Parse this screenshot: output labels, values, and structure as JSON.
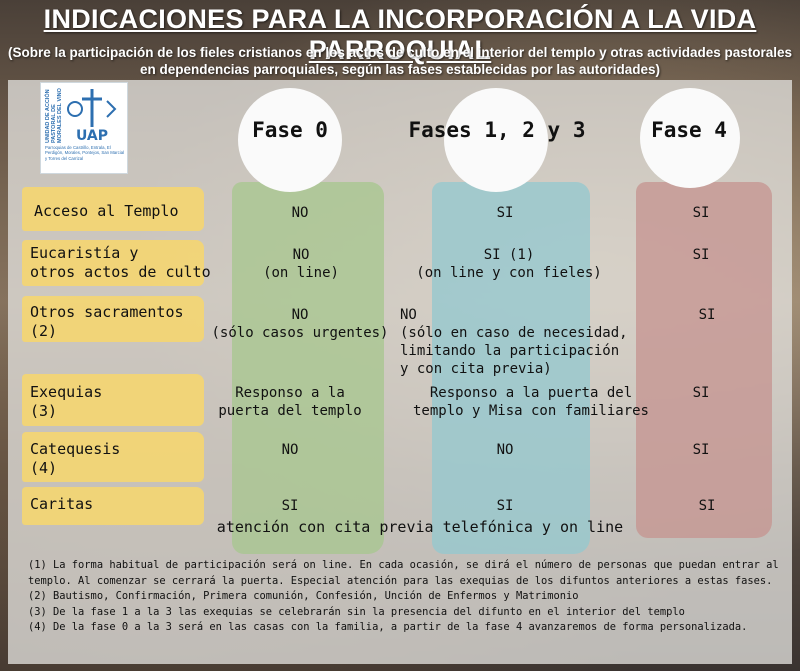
{
  "title": "INDICACIONES PARA LA INCORPORACIÓN A LA VIDA PARROQUIAL",
  "subtitle": "(Sobre la participación de los fieles cristianos en los actos de culto en el interior del templo y otras actividades pastorales en dependencias parroquiales, según las fases establecidas por las autoridades)",
  "logo": {
    "vertical_text": "UNIDAD DE ACCIÓN PASTORAL DE MORALES DEL VINO",
    "caption": "Parroquias de Castrillo, Entrala, El Perdigón, Morales, Pontejos, San Marcial y Torres del Carrizal",
    "emblem": "UAP"
  },
  "phases": [
    "Fase 0",
    "Fases 1, 2 y 3",
    "Fase 4"
  ],
  "rows": [
    {
      "label": "Acceso al Templo",
      "f0": "NO",
      "f123": "SI",
      "f4": "SI"
    },
    {
      "label": "Eucaristía y\notros actos de culto",
      "f0": "NO\n(on line)",
      "f123": "SI (1)\n(on line y con fieles)",
      "f4": "SI"
    },
    {
      "label": "Otros sacramentos\n(2)",
      "f0": "NO\n(sólo casos urgentes)",
      "f123": "NO\n(sólo en caso de necesidad,\nlimitando la participación\ny con cita previa)",
      "f4": "SI"
    },
    {
      "label": "Exequias\n(3)",
      "f0": "Responso a la\npuerta del templo",
      "f123": "Responso a la puerta del\ntemplo y Misa con familiares",
      "f4": "SI"
    },
    {
      "label": "Catequesis\n(4)",
      "f0": "NO",
      "f123": "NO",
      "f4": "SI"
    },
    {
      "label": "Caritas",
      "f0": "SI",
      "f123": "SI",
      "f4": "SI"
    }
  ],
  "caritas_note": "atención con cita previa telefónica y on line",
  "notes": [
    "(1) La forma habitual de participación será on line. En cada ocasión, se dirá el número de personas que puedan entrar al templo. Al comenzar se cerrará la puerta. Especial atención para las exequias de los difuntos anteriores a estas fases.",
    "(2) Bautismo, Confirmación, Primera comunión, Confesión, Unción de Enfermos y Matrimonio",
    "(3) De la fase 1 a la 3 las exequias se celebrarán sin la presencia del difunto en el interior del templo",
    "(4) De la fase 0 a la 3 será en las casas con la familia, a partir de la fase 4 avanzaremos de forma personalizada."
  ],
  "colors": {
    "fase0": "#a8c690",
    "fase123": "#96c8ce",
    "fase4": "#c69692",
    "label": "#f6d66e",
    "logo_blue": "#2d6fb0"
  }
}
